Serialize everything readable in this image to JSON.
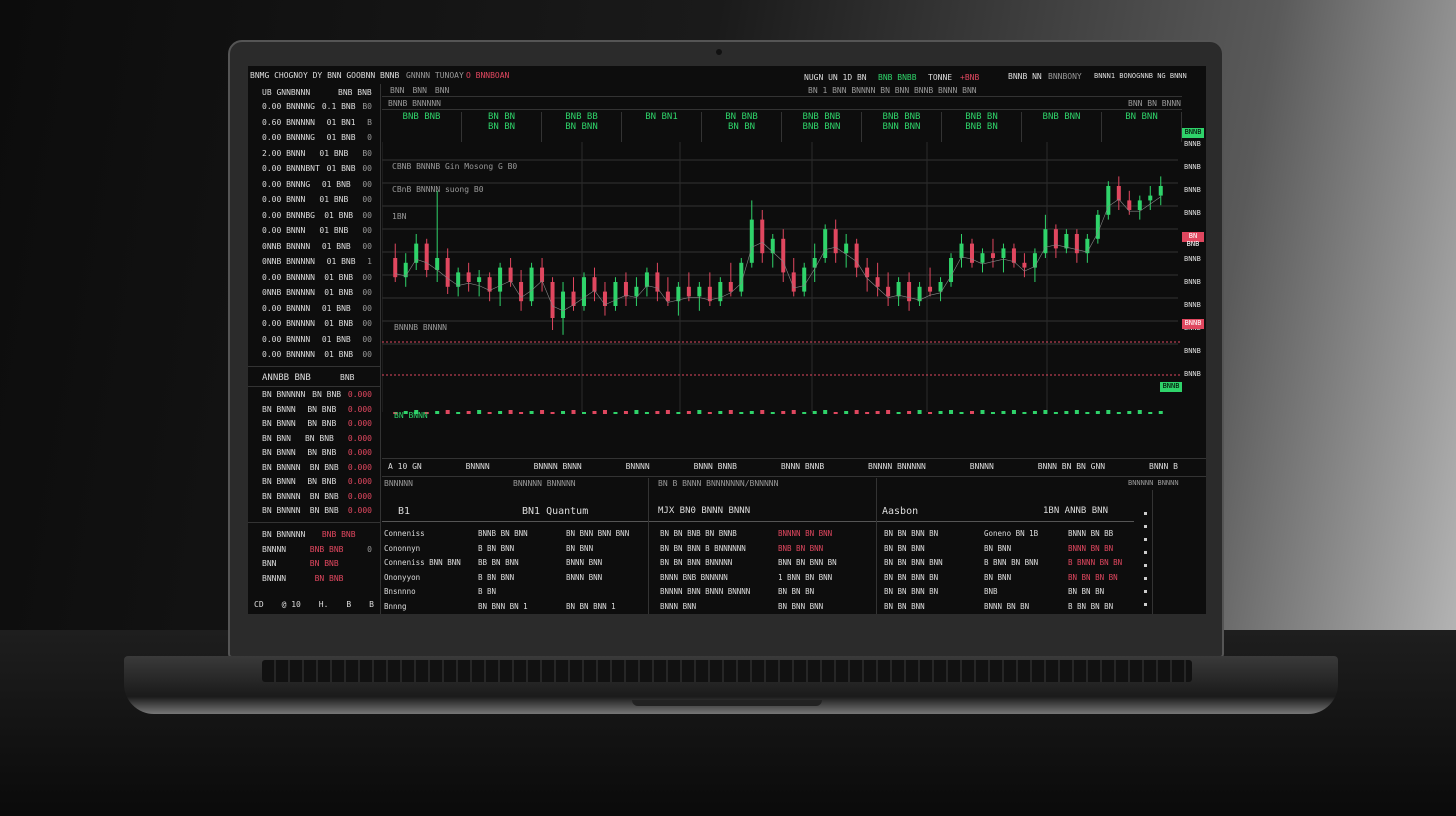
{
  "topbar": {
    "title": "BNMG CHOGNOY DY BNN GOOBNN BNNB",
    "subtitle": "GNNNN TUNOAY",
    "alert": "O BNNBOAN",
    "ticker1": "NUGN UN 1D  BN",
    "ticker1_val": "BNB BNBB",
    "ticker2": "TONNE",
    "ticker2_val": "+BNB",
    "user": "BNNB NN",
    "user_tag": "BNNBONY",
    "right": "BNNN1 BONOGNNB NG BNNN"
  },
  "watchlist": {
    "header": "UB GNNBNNN",
    "header_val": "BNB BNB",
    "items": [
      {
        "a": "0.00 BNNNNG",
        "b": "0.1 BNB",
        "c": "B0"
      },
      {
        "a": "0.60 BNNNNN",
        "b": "01 BN1",
        "c": "B"
      },
      {
        "a": "0.00 BNNNNG",
        "b": "01 BNB",
        "c": "0"
      },
      {
        "a": "2.00 BNNN",
        "b": "01 BNB",
        "c": "B0"
      },
      {
        "a": "0.00 BNNNBNT",
        "b": "01 BNB",
        "c": "00"
      },
      {
        "a": "0.00 BNNNG",
        "b": "01 BNB",
        "c": "00"
      },
      {
        "a": "0.00 BNNN",
        "b": "01 BNB",
        "c": "00"
      },
      {
        "a": "0.00 BNNNBG",
        "b": "01 BNB",
        "c": "00"
      },
      {
        "a": "0.00 BNNN",
        "b": "01 BNB",
        "c": "00"
      },
      {
        "a": "0NNB BNNNN",
        "b": "01 BNB",
        "c": "00"
      },
      {
        "a": "0NNB BNNNNN",
        "b": "01 BNB",
        "c": "1"
      },
      {
        "a": "0.00 BNNNNN",
        "b": "01 BNB",
        "c": "00"
      },
      {
        "a": "0NNB BNNNNN",
        "b": "01 BNB",
        "c": "00"
      },
      {
        "a": "0.00 BNNNN",
        "b": "01 BNB",
        "c": "00"
      },
      {
        "a": "0.00 BNNNNN",
        "b": "01 BNB",
        "c": "00"
      },
      {
        "a": "0.00 BNNNN",
        "b": "01 BNB",
        "c": "00"
      },
      {
        "a": "0.00 BNNNNN",
        "b": "01 BNB",
        "c": "00"
      }
    ]
  },
  "orders": {
    "header": "ANNBB BNB",
    "header_val": "BNB",
    "items": [
      {
        "a": "BN BNNNNN",
        "b": "BN BNB",
        "c": "0.000"
      },
      {
        "a": "BN BNNN",
        "b": "BN BNB",
        "c": "0.000"
      },
      {
        "a": "BN BNNN",
        "b": "BN BNB",
        "c": "0.000"
      },
      {
        "a": "BN BNN",
        "b": "BN BNB",
        "c": "0.000"
      },
      {
        "a": "BN BNNN",
        "b": "BN BNB",
        "c": "0.000"
      },
      {
        "a": "BN BNNNN",
        "b": "BN BNB",
        "c": "0.000"
      },
      {
        "a": "BN BNNN",
        "b": "BN BNB",
        "c": "0.000"
      },
      {
        "a": "BN BNNNN",
        "b": "BN BNB",
        "c": "0.000"
      },
      {
        "a": "BN BNNNN",
        "b": "BN BNB",
        "c": "0.000"
      }
    ]
  },
  "balance": [
    {
      "a": "BN BNNNNN",
      "b": "BNB BNB",
      "c": ""
    },
    {
      "a": "BNNNN",
      "b": "BNB BNB",
      "c": "0"
    },
    {
      "a": "BNN",
      "b": "BN BNB",
      "c": ""
    },
    {
      "a": "BNNNN",
      "b": "BN BNB",
      "c": ""
    }
  ],
  "footer": [
    "CD",
    "@ 10",
    "H.",
    "B",
    "B"
  ],
  "chart": {
    "toolbar": [
      "BNN",
      "BNN",
      "BNN"
    ],
    "toolbar_right": "BN  1 BNN BNNNN BN BNN BNNB BNNN BNN",
    "sub": "BNNB BNNNNN",
    "corner": "BNN BN BNNN",
    "legend1": "CBNB BNNNB Gin Mosong G B0",
    "legend2": "CBnB BNNNN suong B0",
    "legend3": "1BN",
    "low_label": "BNNNB BNNNN",
    "vol_label": "BN BNNN",
    "stats": [
      {
        "v": "BNB BNB",
        "s": ""
      },
      {
        "v": "BN BN",
        "s": "BN BN"
      },
      {
        "v": "BNB BB",
        "s": "BN BNN"
      },
      {
        "v": "BN BN1",
        "s": ""
      },
      {
        "v": "BN BNB",
        "s": "BN BN"
      },
      {
        "v": "BNB BNB",
        "s": "BNB BNN"
      },
      {
        "v": "BNB BNB",
        "s": "BNN BNN"
      },
      {
        "v": "BNB BN",
        "s": "BNB BN"
      },
      {
        "v": "BNB BNN",
        "s": ""
      },
      {
        "v": "BN BNN",
        "s": ""
      }
    ],
    "axis": [
      "BNNB",
      "BNNB",
      "BNNB",
      "BNNB",
      "BNNB",
      "BNNB",
      "BNNB",
      "BNNB",
      "BNNB",
      "BNNB",
      "BNNB"
    ],
    "price_tag_high": "BNNB",
    "price_tag_mid": "BN BNB",
    "price_tag_low": "BNNB"
  },
  "tabs": [
    "A  10 GN",
    "BNNNN",
    "BNNNN BNNN",
    "BNNNN",
    "BNNN BNNB",
    "BNNN BNNB",
    "BNNNN BNNNNN",
    "BNNNN",
    "BNNN BN BN  GNN",
    "BNNN B"
  ],
  "bottom": {
    "p1_title": "B1",
    "p1_head": "BN1  Quantum",
    "p2_title": "MJX  BN0  BNNN  BNNN",
    "p3_title": "Aasbon",
    "p3_head": "1BN  ANNB BNN",
    "sub1": "BNNNNN",
    "sub2": "BNNNNN  BNNNNN",
    "sub3": "BN  B  BNNN  BNNNNNNN/BNNNNN",
    "sub4": "BNNNNN BNNNN",
    "rows": [
      [
        "Conneniss",
        "BNNB BN BNN",
        "BN BNN BNN BNN",
        "BN BN  BNB BN BNNB",
        "BNNNN BN BNN",
        "BN BN BNN BN",
        "Goneno BN 1B",
        "BNNN BN BB"
      ],
      [
        "Cononnyn",
        "B BN BNN",
        "BN BNN",
        "BN BN  BNN B BNNNNNN",
        "BNB BN BNN",
        "BN BN BNN",
        "BN BNN",
        "BNNN BN BN"
      ],
      [
        "Conneniss BNN BNN",
        "BB BN BNN",
        "BNNN BNN",
        "BN BN  BNN BNNNNN",
        "BNN BN BNN BN",
        "BN BN BNN BNN",
        "B BNN BN BNN",
        "B BNNN BN BN"
      ],
      [
        "Ononyyon",
        "B BN BNN",
        "BNNN BNN",
        "BNNN  BNB BNNNNN",
        "1 BNN BN BNN",
        "BN BN BNN BN",
        "BN BNN",
        "BN BN BN BN"
      ],
      [
        "Bnsnnno",
        "B BN",
        "",
        "BNNNN  BNN BNNN BNNNN",
        "BN BN BN",
        "BN BN BNN BN",
        "BNB",
        "BN BN BN"
      ],
      [
        "Bnnng",
        "BN BNN BN 1",
        "BN BN BNN  1",
        "BNNN  BNN",
        "BN BNN BNN",
        "BN BN BNN",
        "BNNN BN BN",
        "B BN BN BN"
      ]
    ],
    "red_cells": [
      [
        0,
        4
      ],
      [
        1,
        4
      ],
      [
        1,
        7
      ],
      [
        2,
        7
      ],
      [
        3,
        7
      ]
    ]
  },
  "colors": {
    "up": "#2fd36a",
    "down": "#e0475f",
    "background": "#0d0d0d",
    "grid": "#333333"
  },
  "chart_data": {
    "type": "candlestick",
    "ylim": [
      0,
      100
    ],
    "candles": [
      [
        60,
        66,
        50,
        52
      ],
      [
        52,
        62,
        48,
        58
      ],
      [
        58,
        70,
        55,
        66
      ],
      [
        66,
        68,
        52,
        55
      ],
      [
        55,
        88,
        50,
        60
      ],
      [
        60,
        64,
        45,
        48
      ],
      [
        48,
        56,
        44,
        54
      ],
      [
        54,
        58,
        46,
        50
      ],
      [
        50,
        55,
        44,
        52
      ],
      [
        52,
        54,
        42,
        46
      ],
      [
        46,
        58,
        40,
        56
      ],
      [
        56,
        60,
        48,
        50
      ],
      [
        50,
        55,
        38,
        42
      ],
      [
        42,
        58,
        40,
        56
      ],
      [
        56,
        60,
        46,
        50
      ],
      [
        50,
        52,
        30,
        35
      ],
      [
        35,
        50,
        28,
        46
      ],
      [
        46,
        52,
        38,
        40
      ],
      [
        40,
        54,
        38,
        52
      ],
      [
        52,
        56,
        42,
        46
      ],
      [
        46,
        50,
        36,
        40
      ],
      [
        40,
        52,
        38,
        50
      ],
      [
        50,
        54,
        40,
        44
      ],
      [
        44,
        52,
        40,
        48
      ],
      [
        48,
        56,
        44,
        54
      ],
      [
        54,
        58,
        42,
        46
      ],
      [
        46,
        52,
        40,
        42
      ],
      [
        42,
        50,
        36,
        48
      ],
      [
        48,
        54,
        42,
        44
      ],
      [
        44,
        50,
        38,
        48
      ],
      [
        48,
        54,
        40,
        42
      ],
      [
        42,
        52,
        40,
        50
      ],
      [
        50,
        58,
        44,
        46
      ],
      [
        46,
        60,
        44,
        58
      ],
      [
        58,
        84,
        56,
        76
      ],
      [
        76,
        80,
        58,
        62
      ],
      [
        62,
        70,
        56,
        68
      ],
      [
        68,
        72,
        50,
        54
      ],
      [
        54,
        60,
        44,
        46
      ],
      [
        46,
        58,
        44,
        56
      ],
      [
        56,
        66,
        50,
        60
      ],
      [
        60,
        74,
        58,
        72
      ],
      [
        72,
        76,
        58,
        62
      ],
      [
        62,
        70,
        56,
        66
      ],
      [
        66,
        68,
        52,
        56
      ],
      [
        56,
        60,
        46,
        52
      ],
      [
        52,
        58,
        44,
        48
      ],
      [
        48,
        54,
        40,
        44
      ],
      [
        44,
        52,
        40,
        50
      ],
      [
        50,
        54,
        38,
        42
      ],
      [
        42,
        50,
        40,
        48
      ],
      [
        48,
        56,
        44,
        46
      ],
      [
        46,
        52,
        42,
        50
      ],
      [
        50,
        62,
        48,
        60
      ],
      [
        60,
        70,
        56,
        66
      ],
      [
        66,
        68,
        56,
        58
      ],
      [
        58,
        64,
        54,
        62
      ],
      [
        62,
        68,
        56,
        60
      ],
      [
        60,
        66,
        54,
        64
      ],
      [
        64,
        66,
        56,
        58
      ],
      [
        58,
        62,
        52,
        56
      ],
      [
        56,
        64,
        50,
        62
      ],
      [
        62,
        78,
        60,
        72
      ],
      [
        72,
        74,
        60,
        64
      ],
      [
        64,
        72,
        62,
        70
      ],
      [
        70,
        72,
        58,
        62
      ],
      [
        62,
        70,
        58,
        68
      ],
      [
        68,
        80,
        66,
        78
      ],
      [
        78,
        92,
        76,
        90
      ],
      [
        90,
        94,
        80,
        84
      ],
      [
        84,
        88,
        78,
        80
      ],
      [
        80,
        86,
        76,
        84
      ],
      [
        84,
        90,
        80,
        86
      ],
      [
        86,
        94,
        82,
        90
      ]
    ]
  }
}
